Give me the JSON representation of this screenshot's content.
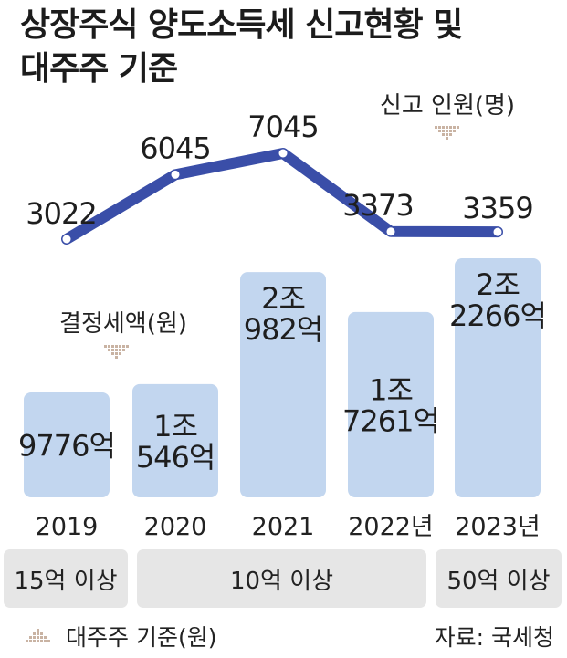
{
  "title": {
    "line1": "상장주식 양도소득세 신고현황 및",
    "line2": "대주주 기준"
  },
  "chart_data": {
    "type": "bar",
    "categories": [
      "2019",
      "2020",
      "2021",
      "2022년",
      "2023년"
    ],
    "bar_series": {
      "name": "결정세액(원)",
      "values_eok": [
        9776,
        10546,
        20982,
        17261,
        22266
      ],
      "labels": [
        [
          "9776억"
        ],
        [
          "1조",
          "546억"
        ],
        [
          "2조",
          "982억"
        ],
        [
          "1조",
          "7261억"
        ],
        [
          "2조",
          "2266억"
        ]
      ]
    },
    "line_series": {
      "name": "신고 인원(명)",
      "values": [
        3022,
        6045,
        7045,
        3373,
        3359
      ],
      "labels": [
        "3022",
        "6045",
        "7045",
        "3373",
        "3359"
      ]
    },
    "colors": {
      "bar": "#c2d6ef",
      "line": "#3a4ea8",
      "marker": "#ffffff",
      "legend_marker": "#c9b3a3"
    }
  },
  "thresholds": [
    {
      "label": "15억 이상"
    },
    {
      "label": "10억 이상"
    },
    {
      "label": "50억 이상"
    }
  ],
  "footer": {
    "legend": "대주주 기준(원)",
    "source": "자료: 국세청"
  }
}
